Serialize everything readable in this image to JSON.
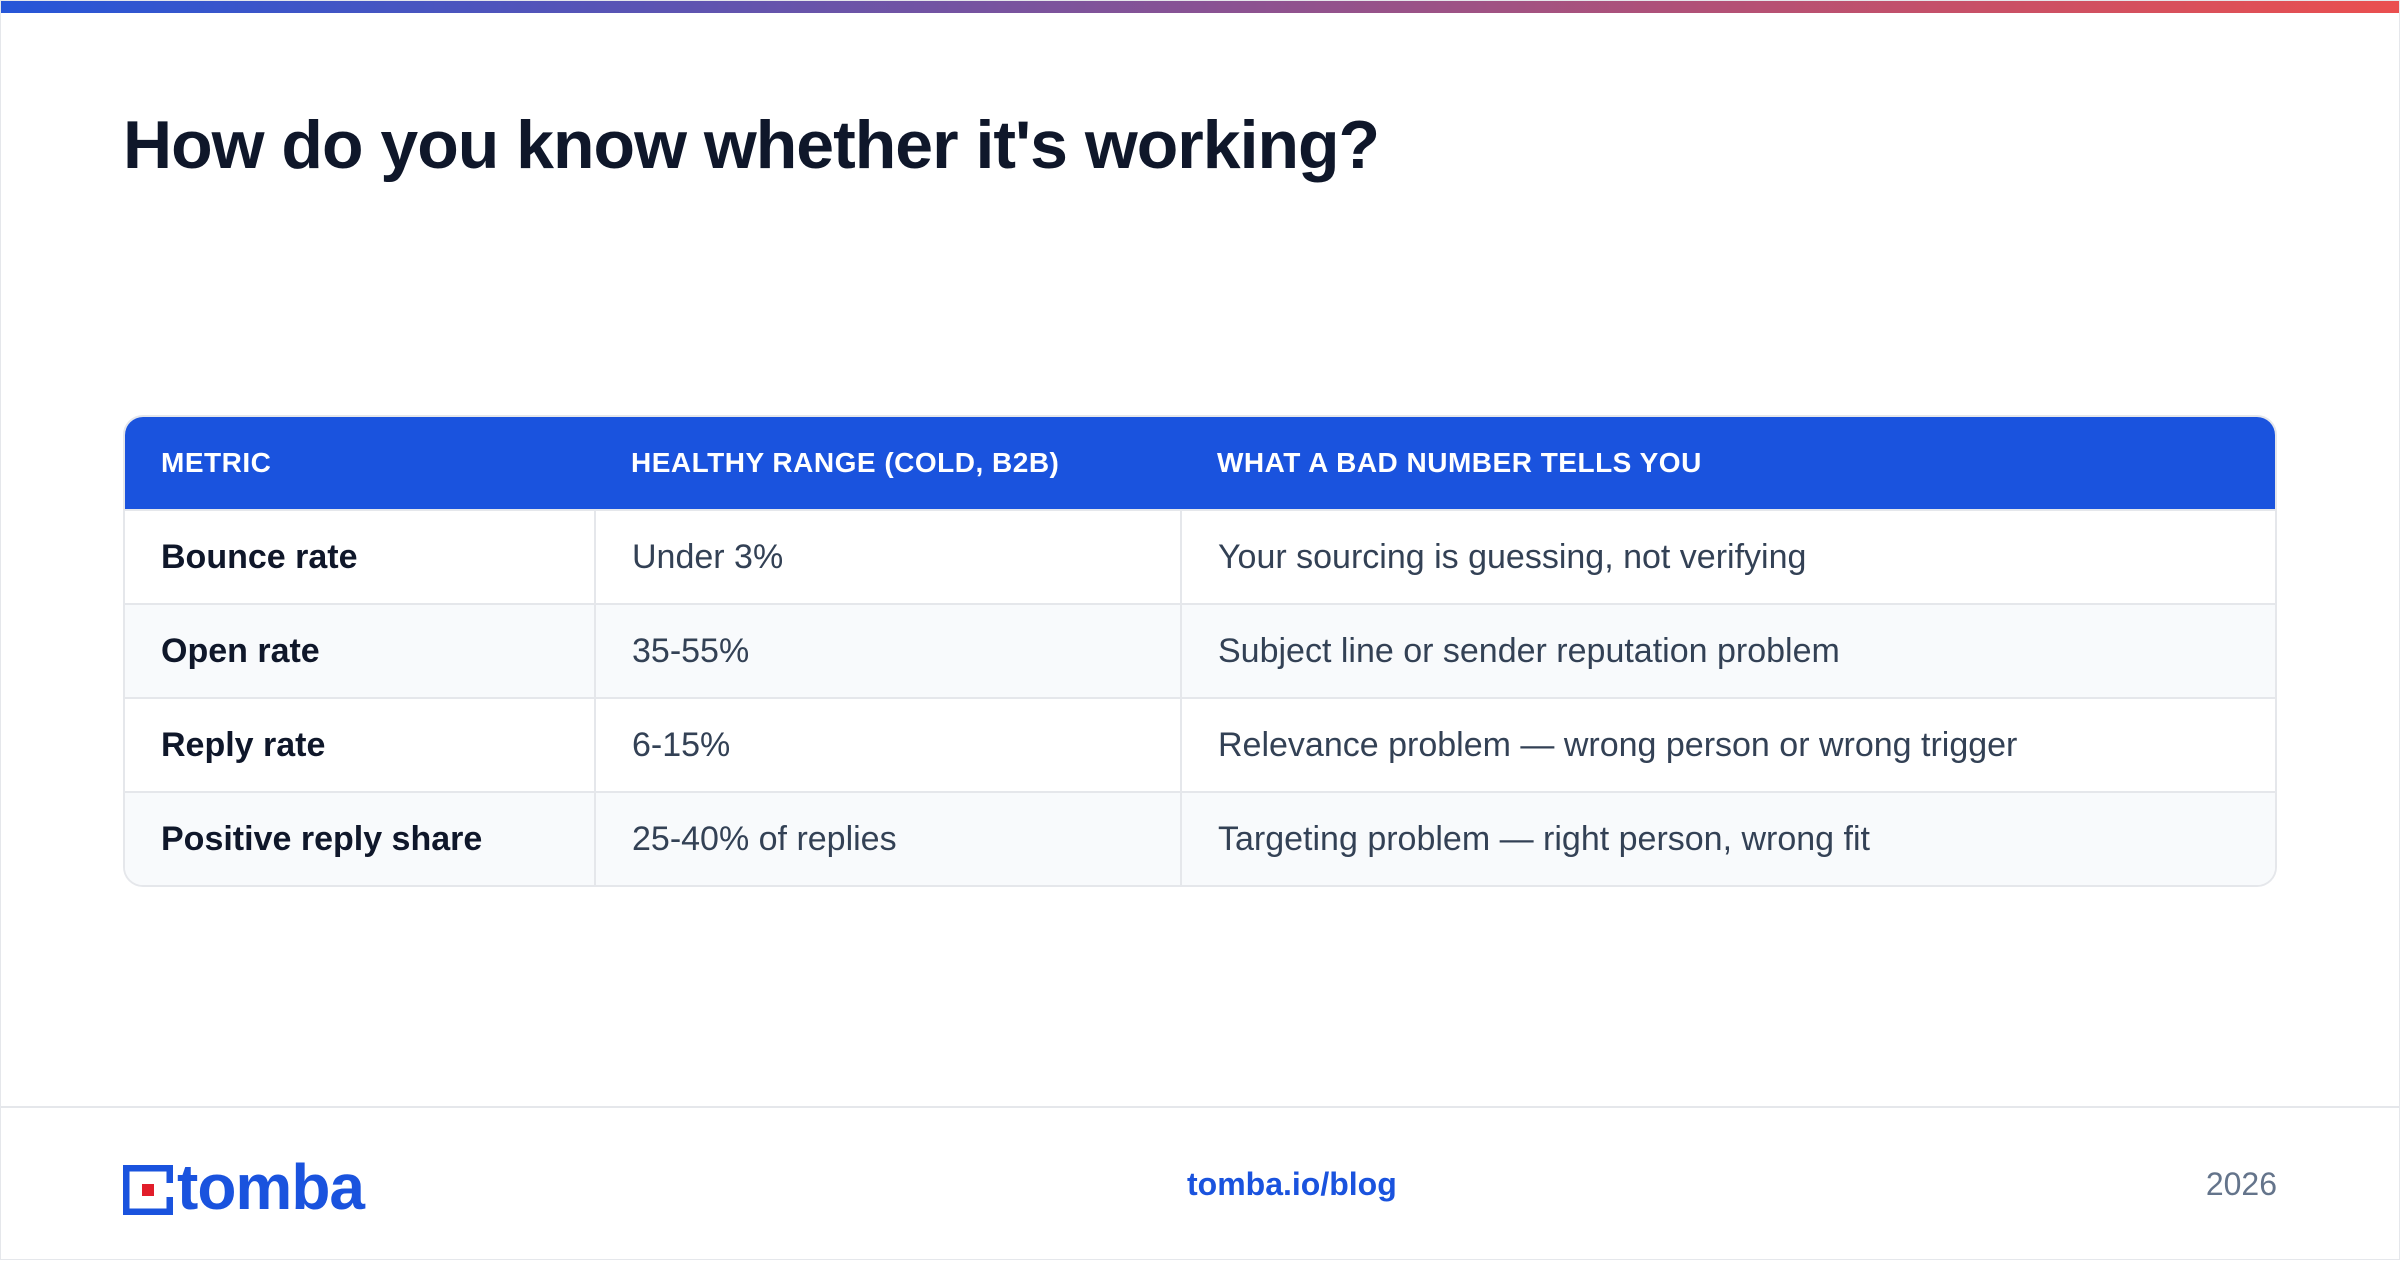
{
  "colors": {
    "accent_blue": "#1a53de",
    "gradient_start": "#2656d8",
    "gradient_end": "#ea4f4f",
    "logo_red": "#e11d2a"
  },
  "title": "How do you know whether it's working?",
  "table": {
    "headers": [
      "METRIC",
      "HEALTHY RANGE (COLD, B2B)",
      "WHAT A BAD NUMBER TELLS YOU"
    ],
    "rows": [
      {
        "metric": "Bounce rate",
        "range": "Under 3%",
        "meaning": "Your sourcing is guessing, not verifying"
      },
      {
        "metric": "Open rate",
        "range": "35-55%",
        "meaning": "Subject line or sender reputation problem"
      },
      {
        "metric": "Reply rate",
        "range": "6-15%",
        "meaning": "Relevance problem — wrong person or wrong trigger"
      },
      {
        "metric": "Positive reply share",
        "range": "25-40% of replies",
        "meaning": "Targeting problem — right person, wrong fit"
      }
    ]
  },
  "footer": {
    "logo_text": "tomba",
    "link": "tomba.io/blog",
    "year": "2026"
  }
}
